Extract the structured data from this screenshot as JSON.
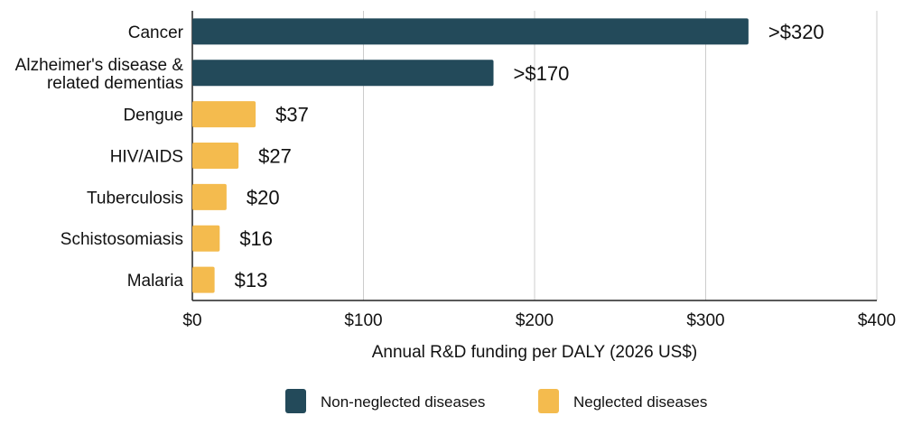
{
  "chart_data": {
    "type": "bar",
    "orientation": "horizontal",
    "categories": [
      "Cancer",
      "Alzheimer's disease & related dementias",
      "Dengue",
      "HIV/AIDS",
      "Tuberculosis",
      "Schistosomiasis",
      "Malaria"
    ],
    "values": [
      325,
      176,
      37,
      27,
      20,
      16,
      13
    ],
    "value_labels": [
      ">$320",
      ">$170",
      "$37",
      "$27",
      "$20",
      "$16",
      "$13"
    ],
    "groups": [
      "Non-neglected diseases",
      "Non-neglected diseases",
      "Neglected diseases",
      "Neglected diseases",
      "Neglected diseases",
      "Neglected diseases",
      "Neglected diseases"
    ],
    "xlabel": "Annual R&D funding per DALY (2026 US$)",
    "xlim": [
      0,
      400
    ],
    "xticks": [
      0,
      100,
      200,
      300,
      400
    ],
    "xtick_labels": [
      "$0",
      "$100",
      "$200",
      "$300",
      "$400"
    ],
    "grid": "vertical",
    "legend_position": "bottom-center",
    "legend": [
      {
        "name": "Non-neglected diseases",
        "color": "#234a5a"
      },
      {
        "name": "Neglected diseases",
        "color": "#f4bb4e"
      }
    ]
  }
}
